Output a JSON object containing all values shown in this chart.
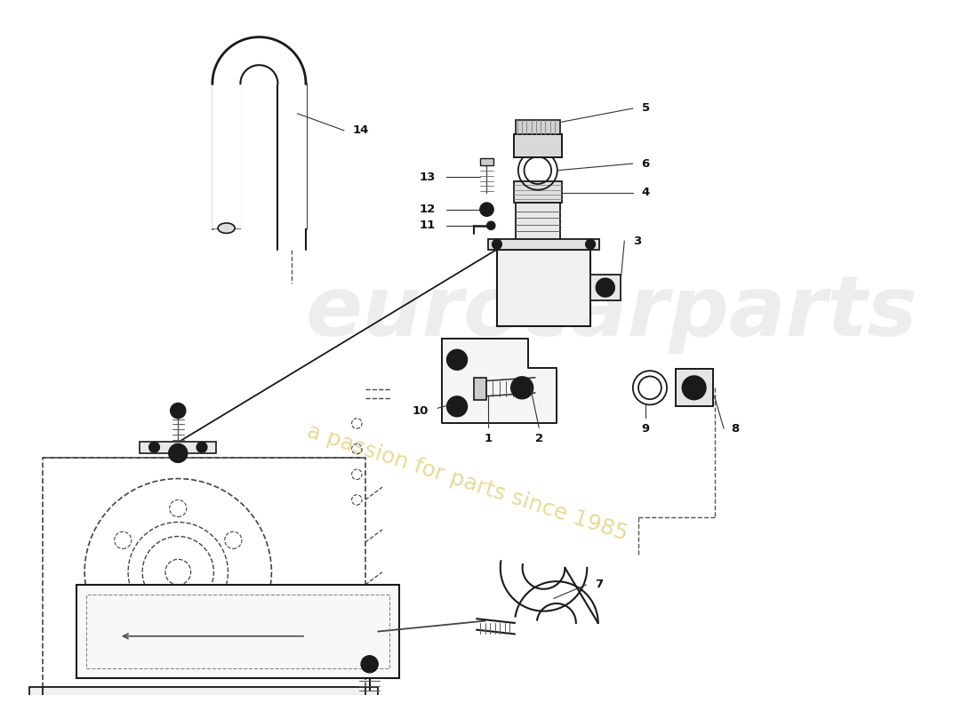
{
  "bg_color": "#ffffff",
  "lc": "#1a1a1a",
  "dc": "#444444",
  "wm1": "eurocarparts",
  "wm2": "a passion for parts since 1985",
  "wm1_color": "#cccccc",
  "wm2_color": "#d4bc40",
  "figsize": [
    11.0,
    8.0
  ],
  "dpi": 100,
  "xlim": [
    0,
    11
  ],
  "ylim": [
    0,
    8
  ]
}
